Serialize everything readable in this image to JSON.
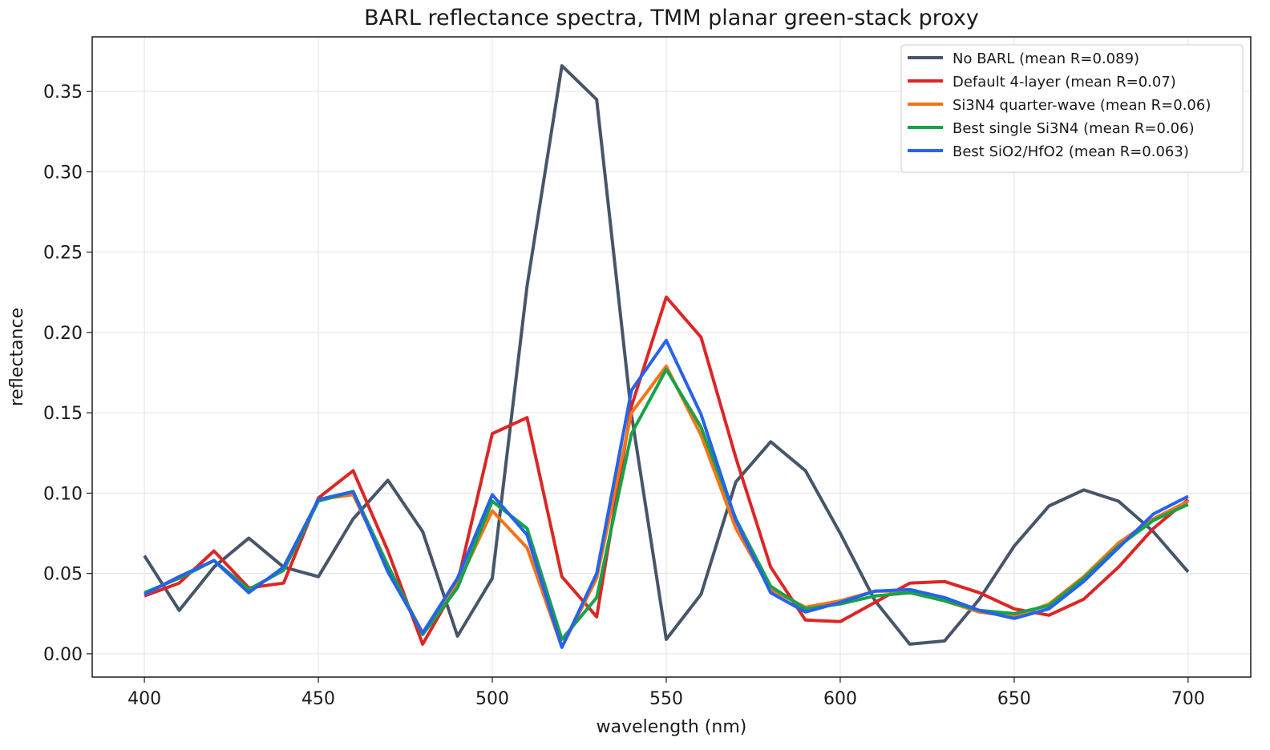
{
  "chart_data": {
    "type": "line",
    "title": "BARL reflectance spectra, TMM planar green-stack proxy",
    "xlabel": "wavelength (nm)",
    "ylabel": "reflectance",
    "xlim": [
      385,
      718
    ],
    "ylim": [
      -0.0145,
      0.384
    ],
    "grid": true,
    "legend_position": "top-right",
    "x_ticks": [
      400,
      450,
      500,
      550,
      600,
      650,
      700
    ],
    "x_tick_labels": [
      "400",
      "450",
      "500",
      "550",
      "600",
      "650",
      "700"
    ],
    "y_ticks": [
      0.0,
      0.05,
      0.1,
      0.15,
      0.2,
      0.25,
      0.3,
      0.35
    ],
    "y_tick_labels": [
      "0.00",
      "0.05",
      "0.10",
      "0.15",
      "0.20",
      "0.25",
      "0.30",
      "0.35"
    ],
    "x": [
      400,
      410,
      420,
      430,
      440,
      450,
      460,
      470,
      480,
      490,
      500,
      510,
      520,
      530,
      540,
      550,
      560,
      570,
      580,
      590,
      600,
      610,
      620,
      630,
      640,
      650,
      660,
      670,
      680,
      690,
      700
    ],
    "series": [
      {
        "name": "No BARL (mean R=0.089)",
        "color": "#475569",
        "values": [
          0.061,
          0.027,
          0.054,
          0.072,
          0.054,
          0.048,
          0.084,
          0.108,
          0.076,
          0.011,
          0.047,
          0.229,
          0.366,
          0.345,
          0.149,
          0.009,
          0.037,
          0.107,
          0.132,
          0.114,
          0.075,
          0.033,
          0.006,
          0.008,
          0.034,
          0.067,
          0.092,
          0.102,
          0.095,
          0.076,
          0.051
        ]
      },
      {
        "name": "Default 4-layer (mean R=0.07)",
        "color": "#dc2626",
        "values": [
          0.036,
          0.044,
          0.064,
          0.041,
          0.044,
          0.097,
          0.114,
          0.064,
          0.006,
          0.044,
          0.137,
          0.147,
          0.048,
          0.023,
          0.154,
          0.222,
          0.197,
          0.122,
          0.054,
          0.021,
          0.02,
          0.032,
          0.044,
          0.045,
          0.038,
          0.028,
          0.024,
          0.034,
          0.054,
          0.078,
          0.096
        ]
      },
      {
        "name": "Si3N4 quarter-wave (mean R=0.06)",
        "color": "#f97316",
        "values": [
          0.037,
          0.048,
          0.058,
          0.04,
          0.052,
          0.096,
          0.099,
          0.054,
          0.013,
          0.043,
          0.089,
          0.066,
          0.004,
          0.047,
          0.15,
          0.179,
          0.136,
          0.078,
          0.04,
          0.029,
          0.033,
          0.039,
          0.039,
          0.033,
          0.026,
          0.023,
          0.031,
          0.048,
          0.069,
          0.084,
          0.095
        ]
      },
      {
        "name": "Best single Si3N4 (mean R=0.06)",
        "color": "#16a34a",
        "values": [
          0.038,
          0.047,
          0.058,
          0.04,
          0.052,
          0.095,
          0.101,
          0.055,
          0.012,
          0.041,
          0.095,
          0.078,
          0.009,
          0.035,
          0.137,
          0.177,
          0.141,
          0.084,
          0.042,
          0.028,
          0.031,
          0.036,
          0.038,
          0.033,
          0.027,
          0.025,
          0.03,
          0.047,
          0.067,
          0.083,
          0.093
        ]
      },
      {
        "name": "Best SiO2/HfO2 (mean R=0.063)",
        "color": "#2563eb",
        "values": [
          0.037,
          0.048,
          0.058,
          0.038,
          0.054,
          0.096,
          0.101,
          0.051,
          0.013,
          0.047,
          0.099,
          0.074,
          0.004,
          0.05,
          0.164,
          0.195,
          0.149,
          0.083,
          0.038,
          0.026,
          0.032,
          0.039,
          0.04,
          0.035,
          0.027,
          0.022,
          0.028,
          0.045,
          0.066,
          0.087,
          0.098
        ]
      }
    ]
  }
}
